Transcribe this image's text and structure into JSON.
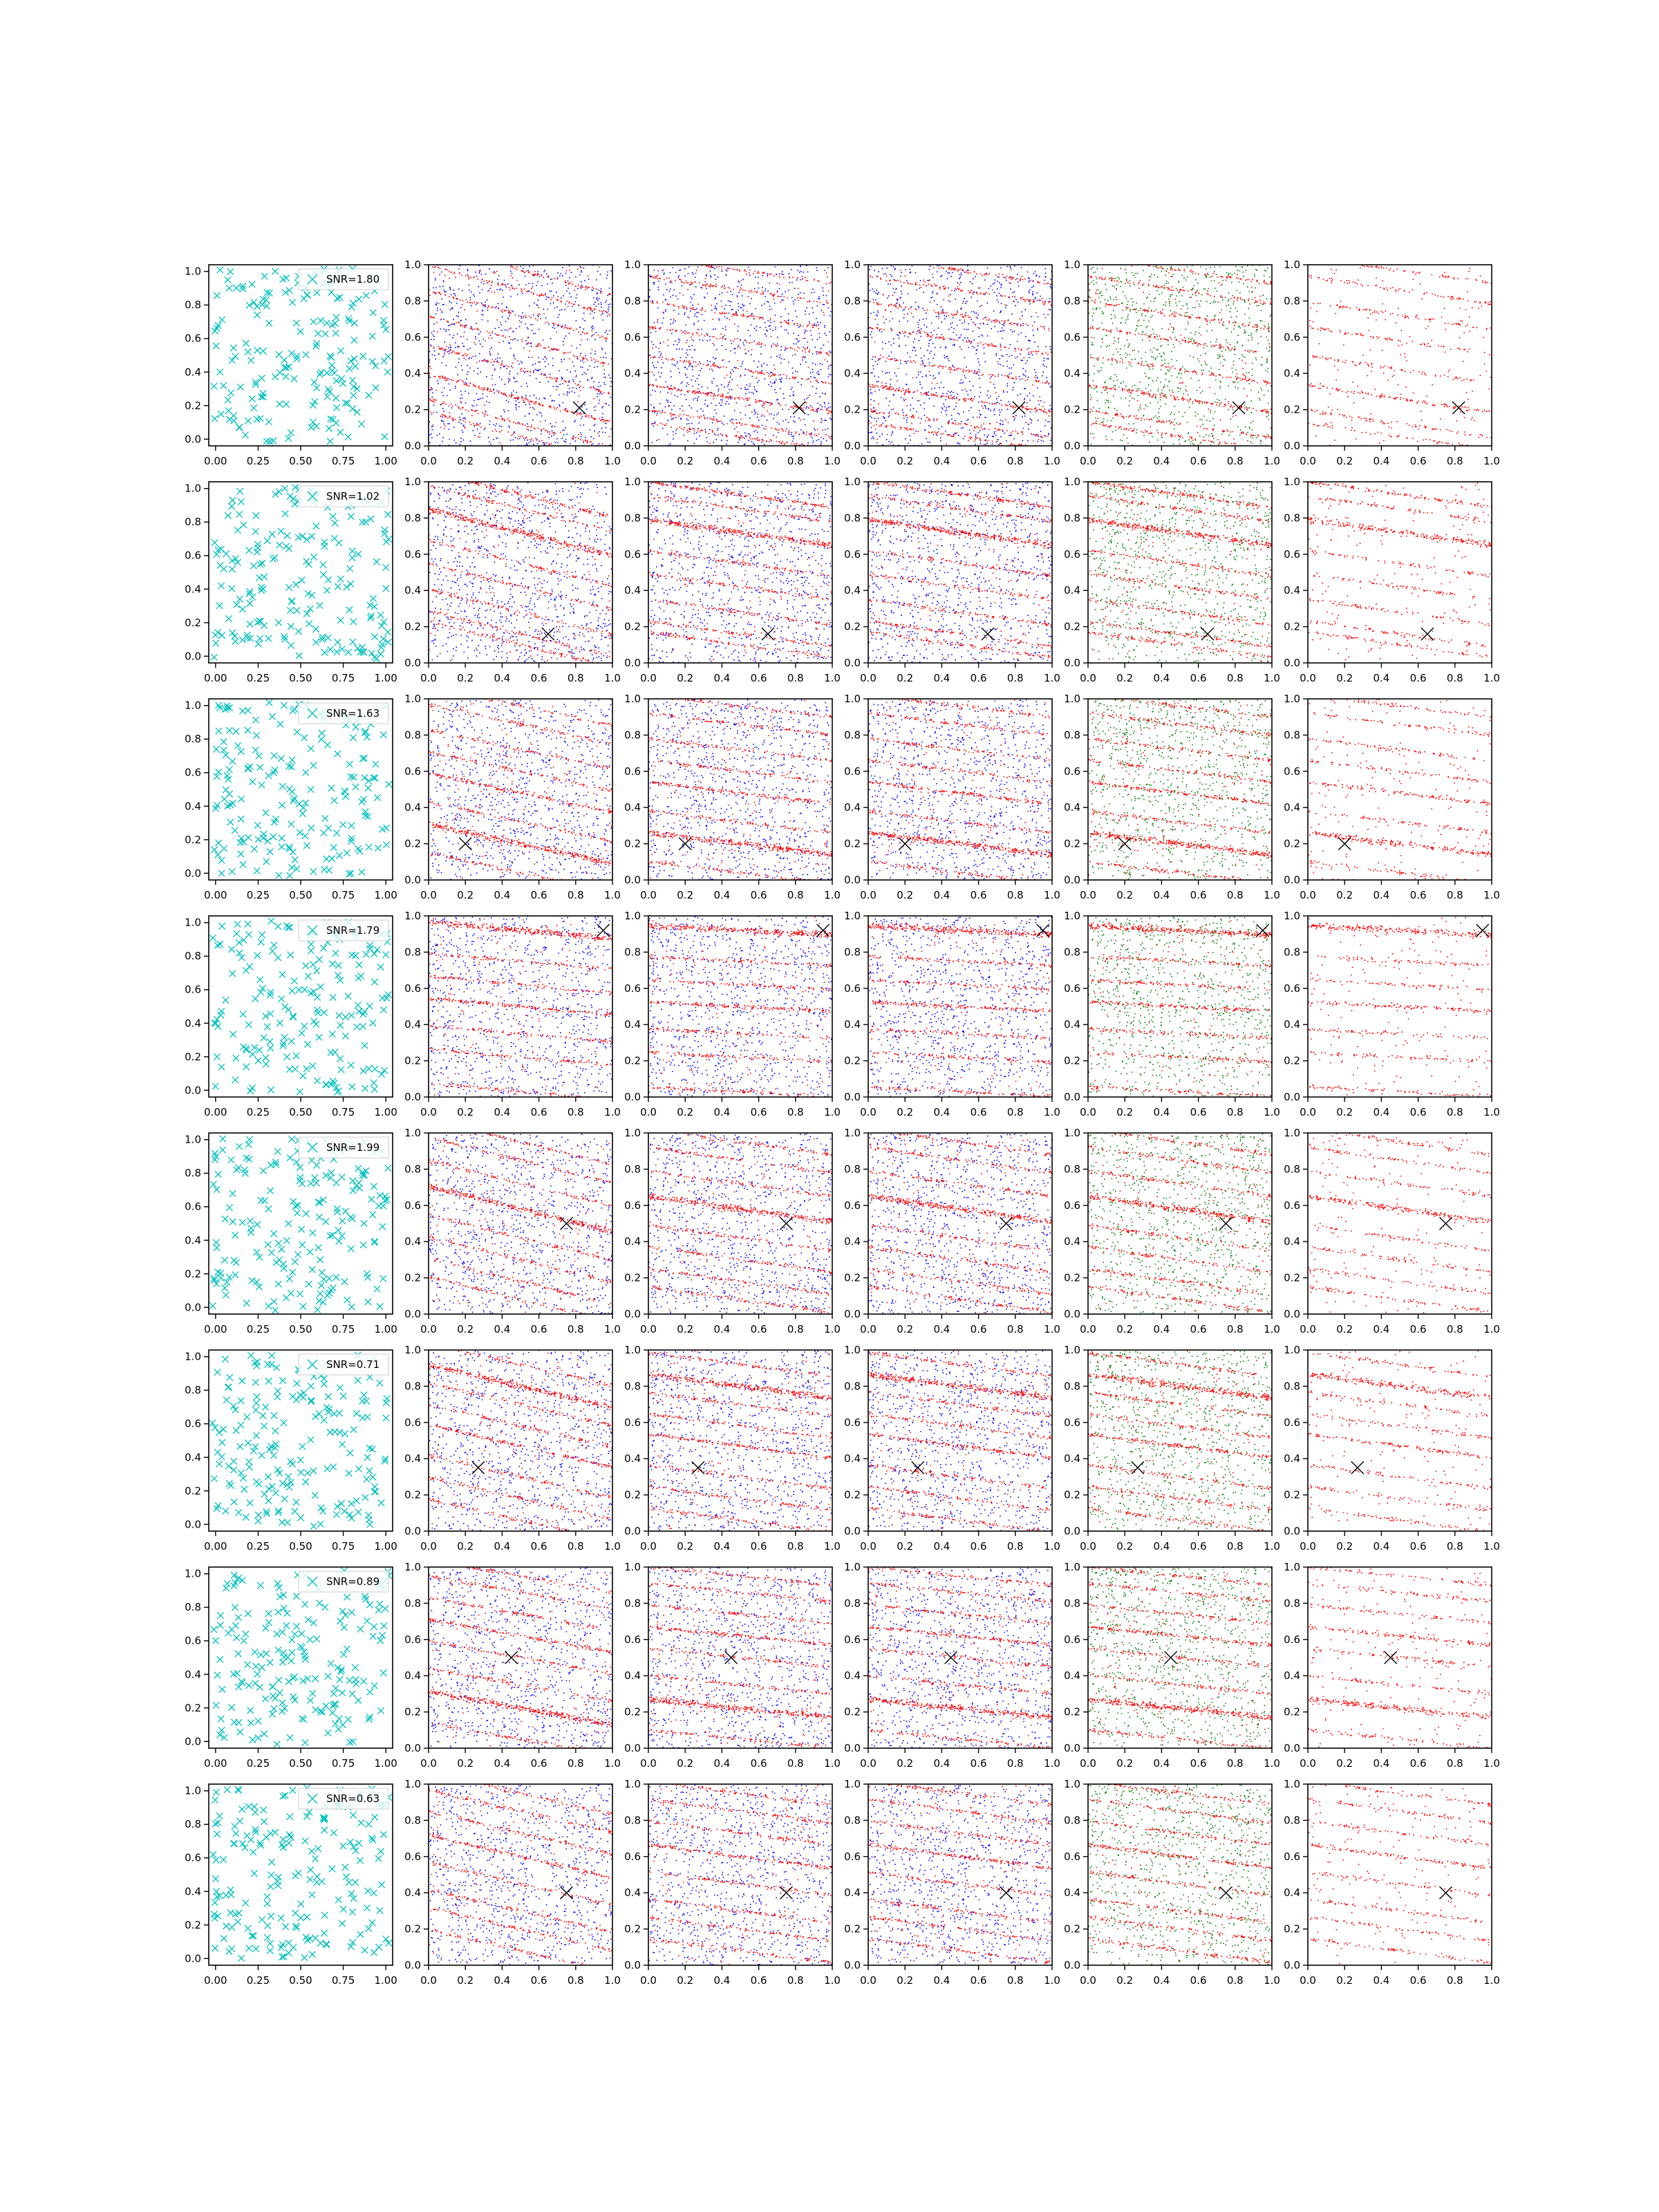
{
  "figure": {
    "colors": {
      "cross": "#00bfbf",
      "red": "#ff0000",
      "blue": "#0000ff",
      "green": "#008000",
      "marker": "#000000"
    }
  },
  "chart_data": {
    "type": "scatter",
    "grid": false,
    "column_types": [
      "crosses",
      "red-blue",
      "red-blue",
      "red-blue",
      "red-green",
      "red-only"
    ],
    "col1_xticks": [
      "0.00",
      "0.25",
      "0.50",
      "0.75",
      "1.00"
    ],
    "col1_yticks": [
      "0.0",
      "0.2",
      "0.4",
      "0.6",
      "0.8",
      "1.0"
    ],
    "other_xticks": [
      "0.0",
      "0.2",
      "0.4",
      "0.6",
      "0.8",
      "1.0"
    ],
    "other_yticks": [
      "0.0",
      "0.2",
      "0.4",
      "0.6",
      "0.8",
      "1.0"
    ],
    "xlim": [
      0,
      1
    ],
    "ylim": [
      0,
      1
    ],
    "rows": [
      {
        "label": "SNR=1.80",
        "marker": [
          0.82,
          0.21
        ],
        "slope": -0.15,
        "dense": [
          0.22,
          0.26
        ],
        "bands": [
          0.05,
          0.12,
          0.26,
          0.42,
          0.58,
          0.72,
          0.86,
          0.97
        ]
      },
      {
        "label": "SNR=1.02",
        "marker": [
          0.65,
          0.16
        ],
        "slope": -0.14,
        "dense": [
          0.72,
          0.93
        ],
        "bands": [
          0.1,
          0.16,
          0.28,
          0.42,
          0.55,
          0.72,
          0.85,
          0.93
        ]
      },
      {
        "label": "SNR=1.63",
        "marker": [
          0.2,
          0.2
        ],
        "slope": -0.12,
        "dense": [
          0.2,
          0.48
        ],
        "bands": [
          0.04,
          0.2,
          0.32,
          0.48,
          0.6,
          0.72,
          0.86,
          0.96
        ]
      },
      {
        "label": "SNR=1.79",
        "marker": [
          0.95,
          0.92
        ],
        "slope": -0.05,
        "dense": [
          0.92,
          0.5
        ],
        "bands": [
          0.03,
          0.22,
          0.35,
          0.5,
          0.62,
          0.75,
          0.92
        ]
      },
      {
        "label": "SNR=1.99",
        "marker": [
          0.75,
          0.5
        ],
        "slope": -0.14,
        "dense": [
          0.58,
          0.27
        ],
        "bands": [
          0.08,
          0.18,
          0.3,
          0.42,
          0.58,
          0.72,
          0.85,
          0.95
        ]
      },
      {
        "label": "SNR=0.71",
        "marker": [
          0.27,
          0.35
        ],
        "slope": -0.13,
        "dense": [
          0.8,
          0.47
        ],
        "bands": [
          0.06,
          0.18,
          0.3,
          0.47,
          0.58,
          0.7,
          0.8,
          0.92
        ]
      },
      {
        "label": "SNR=0.89",
        "marker": [
          0.45,
          0.5
        ],
        "slope": -0.1,
        "dense": [
          0.22,
          0.62
        ],
        "bands": [
          0.05,
          0.22,
          0.35,
          0.5,
          0.62,
          0.74,
          0.86,
          0.95
        ]
      },
      {
        "label": "SNR=0.63",
        "marker": [
          0.75,
          0.4
        ],
        "slope": -0.13,
        "dense": [
          0.25,
          0.6
        ],
        "bands": [
          0.08,
          0.2,
          0.3,
          0.45,
          0.6,
          0.73,
          0.85,
          0.95
        ]
      }
    ]
  }
}
